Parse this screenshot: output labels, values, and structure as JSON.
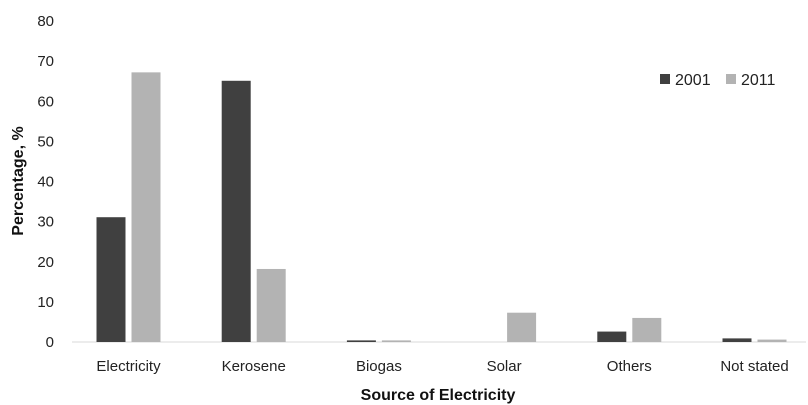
{
  "chart_data": {
    "type": "bar",
    "categories": [
      "Electricity",
      "Kerosene",
      "Biogas",
      "Solar",
      "Others",
      "Not stated"
    ],
    "series": [
      {
        "name": "2001",
        "values": [
          31.1,
          65.1,
          0.4,
          0.0,
          2.6,
          0.9
        ],
        "color": "#404040"
      },
      {
        "name": "2011",
        "values": [
          67.2,
          18.2,
          0.4,
          7.3,
          6.0,
          0.6
        ],
        "color": "#b3b3b3"
      }
    ],
    "title": "",
    "xlabel": "Source of Electricity",
    "ylabel": "Percentage, %",
    "ylim": [
      0,
      80
    ],
    "yticks": [
      0,
      10,
      20,
      30,
      40,
      50,
      60,
      70,
      80
    ],
    "grid": false,
    "legend_position": "top-right",
    "axis_color": "#d9d9d9"
  }
}
